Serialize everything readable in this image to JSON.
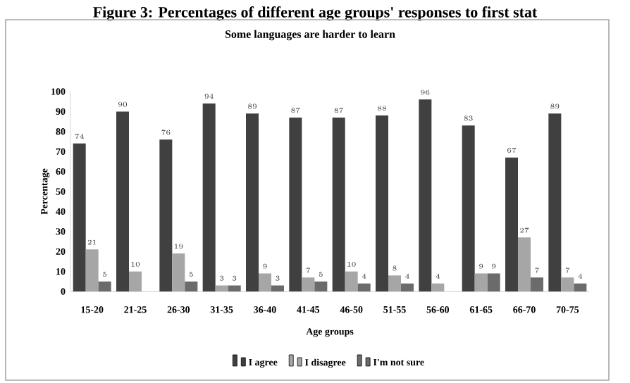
{
  "chart_data": {
    "type": "bar",
    "title": "Figure 3: Percentages of different age groups' responses to first stat",
    "subtitle": "Some languages are harder to learn",
    "xlabel": "Age groups",
    "ylabel": "Percentage",
    "categories": [
      "15-20",
      "21-25",
      "26-30",
      "31-35",
      "36-40",
      "41-45",
      "46-50",
      "51-55",
      "56-60",
      "61-65",
      "66-70",
      "70-75"
    ],
    "series": [
      {
        "name": "I agree",
        "color": "#404040",
        "values": [
          74,
          90,
          76,
          94,
          89,
          87,
          87,
          88,
          96,
          83,
          67,
          89
        ]
      },
      {
        "name": "I disagree",
        "color": "#a6a6a6",
        "values": [
          21,
          10,
          19,
          3,
          9,
          7,
          10,
          8,
          4,
          9,
          27,
          7
        ]
      },
      {
        "name": "I'm not sure",
        "color": "#6b6b6b",
        "values": [
          5,
          null,
          5,
          3,
          3,
          5,
          4,
          4,
          null,
          9,
          7,
          4
        ]
      }
    ],
    "ylim": [
      0,
      100
    ],
    "yticks": [
      0,
      10,
      20,
      30,
      40,
      50,
      60,
      70,
      80,
      90,
      100
    ],
    "grid": false,
    "legend": "bottom",
    "data_labels": true
  }
}
